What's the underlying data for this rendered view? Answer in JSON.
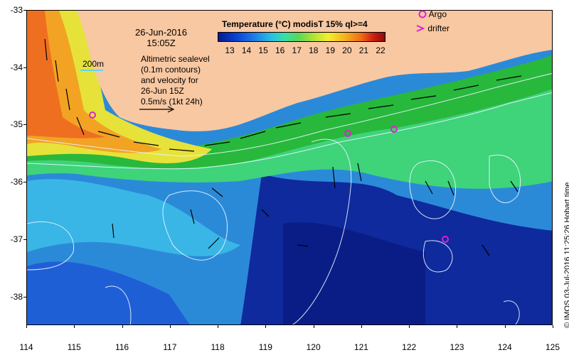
{
  "map": {
    "date_line1": "26-Jun-2016",
    "date_line2": "15:05Z",
    "sealevel_lines": [
      "Altimetric sealevel",
      "(0.1m contours)",
      "and velocity for",
      "26-Jun 15Z",
      "0.5m/s (1kt 24h)"
    ],
    "scale_label": "200m",
    "credit": "© IMOS 03-Jul-2016 11:25:26 Hobart time",
    "lon_ticks": [
      "114",
      "115",
      "116",
      "117",
      "118",
      "119",
      "120",
      "121",
      "122",
      "123",
      "124",
      "125"
    ],
    "lat_ticks": [
      "-33",
      "-34",
      "-35",
      "-36",
      "-37",
      "-38"
    ],
    "lon_range": [
      114,
      125
    ],
    "lat_range": [
      -38.5,
      -33
    ]
  },
  "colorbar": {
    "title": "Temperature (°C) modisT 15% ql>=4",
    "ticks": [
      "13",
      "14",
      "15",
      "16",
      "17",
      "18",
      "19",
      "20",
      "21",
      "22"
    ]
  },
  "legend": {
    "argo_label": "Argo",
    "drifter_label": "drifter",
    "argo_color": "#e020d0",
    "drifter_color": "#e020d0"
  },
  "argo_floats": [
    {
      "lon": 115.4,
      "lat": -34.8
    },
    {
      "lon": 120.75,
      "lat": -35.1
    },
    {
      "lon": 121.7,
      "lat": -35.0
    },
    {
      "lon": 122.75,
      "lat": -36.9
    }
  ]
}
